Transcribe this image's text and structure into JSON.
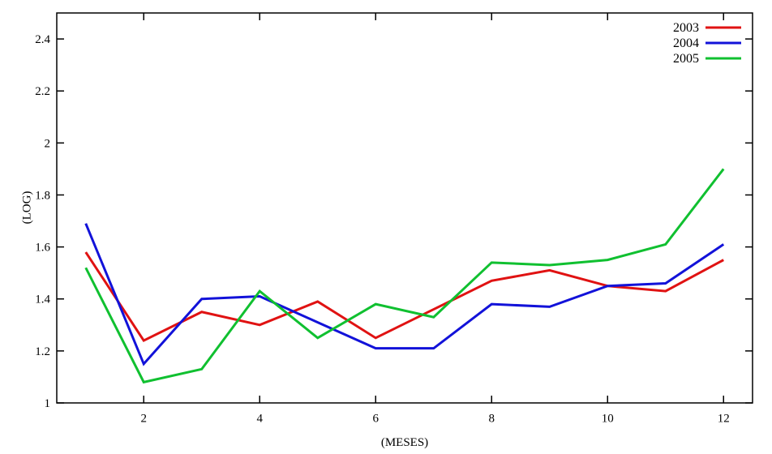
{
  "chart_data": {
    "type": "line",
    "title": "",
    "xlabel": "(MESES)",
    "ylabel": "(LOG)",
    "x": [
      1,
      2,
      3,
      4,
      5,
      6,
      7,
      8,
      9,
      10,
      11,
      12
    ],
    "series": [
      {
        "name": "2003",
        "color": "#e01212",
        "values": [
          1.58,
          1.24,
          1.35,
          1.3,
          1.39,
          1.25,
          1.36,
          1.47,
          1.51,
          1.45,
          1.43,
          1.55
        ]
      },
      {
        "name": "2004",
        "color": "#1212d9",
        "values": [
          1.69,
          1.15,
          1.4,
          1.41,
          1.31,
          1.21,
          1.21,
          1.38,
          1.37,
          1.45,
          1.46,
          1.61
        ]
      },
      {
        "name": "2005",
        "color": "#10c030",
        "values": [
          1.52,
          1.08,
          1.13,
          1.43,
          1.25,
          1.38,
          1.33,
          1.54,
          1.53,
          1.55,
          1.61,
          1.9
        ]
      }
    ],
    "xlim": [
      0.5,
      12.5
    ],
    "ylim": [
      1,
      2.5
    ],
    "xticks": [
      {
        "value": 2,
        "label": "2"
      },
      {
        "value": 4,
        "label": "4"
      },
      {
        "value": 6,
        "label": "6"
      },
      {
        "value": 8,
        "label": "8"
      },
      {
        "value": 10,
        "label": "10"
      },
      {
        "value": 12,
        "label": "12"
      }
    ],
    "yticks": [
      {
        "value": 1,
        "label": "1"
      },
      {
        "value": 1.2,
        "label": "1.2"
      },
      {
        "value": 1.4,
        "label": "1.4"
      },
      {
        "value": 1.6,
        "label": "1.6"
      },
      {
        "value": 1.8,
        "label": "1.8"
      },
      {
        "value": 2,
        "label": "2"
      },
      {
        "value": 2.2,
        "label": "2.2"
      },
      {
        "value": 2.4,
        "label": "2.4"
      }
    ],
    "legend_position": "top-right",
    "grid": false,
    "border_color": "#000000",
    "background_color": "#ffffff"
  }
}
